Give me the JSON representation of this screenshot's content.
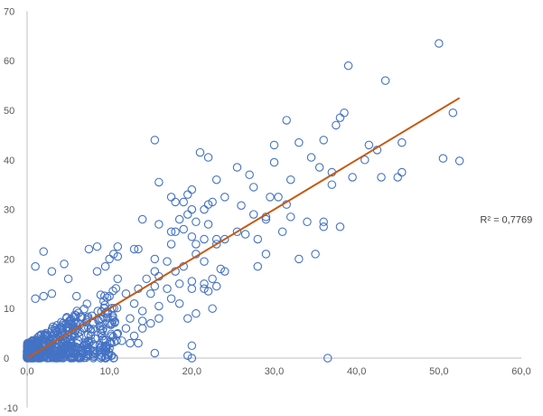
{
  "chart_data": {
    "type": "scatter",
    "title": "",
    "xlabel": "",
    "ylabel": "",
    "xlim": [
      0,
      60
    ],
    "ylim": [
      -10,
      70
    ],
    "x_ticks": [
      0,
      10,
      20,
      30,
      40,
      50,
      60
    ],
    "x_tick_labels": [
      "0,0",
      "10,0",
      "20,0",
      "30,0",
      "40,0",
      "50,0",
      "60,0"
    ],
    "y_ticks": [
      -10,
      0,
      10,
      20,
      30,
      40,
      50,
      60,
      70
    ],
    "y_tick_labels": [
      "-10",
      "0",
      "10",
      "20",
      "30",
      "40",
      "50",
      "60",
      "70"
    ],
    "grid": false,
    "legend": "none",
    "colors": {
      "marker": "#4472C4",
      "trendline": "#C55A11",
      "axis": "#BFBFBF",
      "text": "#595959"
    },
    "trendline": {
      "type": "linear",
      "x": [
        0,
        52.5
      ],
      "y": [
        0,
        52.5
      ],
      "r2_label": "R² = 0,7769",
      "r2_position": [
        55,
        28
      ]
    },
    "series": [
      {
        "points": [
          [
            50,
            63.5
          ],
          [
            39,
            59
          ],
          [
            43.5,
            56
          ],
          [
            38.5,
            49.5
          ],
          [
            38,
            48.5
          ],
          [
            31.5,
            48
          ],
          [
            37.5,
            47
          ],
          [
            51.7,
            49.5
          ],
          [
            15.5,
            44
          ],
          [
            36,
            44
          ],
          [
            41.5,
            43
          ],
          [
            45.5,
            43.5
          ],
          [
            33,
            43.5
          ],
          [
            30,
            43
          ],
          [
            42.5,
            42
          ],
          [
            21,
            41.5
          ],
          [
            22,
            40.5
          ],
          [
            50.5,
            40.3
          ],
          [
            52.5,
            39.8
          ],
          [
            30,
            39.5
          ],
          [
            34.5,
            40.5
          ],
          [
            41,
            40
          ],
          [
            35.5,
            38.5
          ],
          [
            25.5,
            38.5
          ],
          [
            45.5,
            37.5
          ],
          [
            37,
            37.5
          ],
          [
            43,
            36.5
          ],
          [
            23,
            36
          ],
          [
            39.5,
            36.5
          ],
          [
            32,
            36
          ],
          [
            27,
            37
          ],
          [
            16,
            35.5
          ],
          [
            37,
            35
          ],
          [
            45,
            36.5
          ],
          [
            27.5,
            34.5
          ],
          [
            20,
            34
          ],
          [
            29.5,
            32.5
          ],
          [
            30.5,
            32.5
          ],
          [
            24,
            32.5
          ],
          [
            17.5,
            32.5
          ],
          [
            19.5,
            33
          ],
          [
            18,
            31.5
          ],
          [
            22,
            31
          ],
          [
            19,
            31.5
          ],
          [
            22.5,
            31.5
          ],
          [
            26,
            30.8
          ],
          [
            31.5,
            31
          ],
          [
            21.5,
            30
          ],
          [
            20,
            30
          ],
          [
            27.5,
            29
          ],
          [
            19.5,
            29
          ],
          [
            29,
            28.5
          ],
          [
            29,
            28
          ],
          [
            32,
            28.5
          ],
          [
            14,
            28
          ],
          [
            18.5,
            28
          ],
          [
            20.5,
            27.5
          ],
          [
            22,
            27
          ],
          [
            34,
            27.5
          ],
          [
            36,
            27.5
          ],
          [
            38,
            26.5
          ],
          [
            16,
            27
          ],
          [
            19,
            26
          ],
          [
            25.5,
            25.5
          ],
          [
            31,
            25.5
          ],
          [
            17.5,
            25.5
          ],
          [
            18,
            25.5
          ],
          [
            36,
            26.5
          ],
          [
            26.5,
            25
          ],
          [
            20,
            24.5
          ],
          [
            21.5,
            24
          ],
          [
            23,
            24
          ],
          [
            24,
            24
          ],
          [
            28,
            24
          ],
          [
            20.5,
            23
          ],
          [
            17.5,
            23
          ],
          [
            11,
            22.5
          ],
          [
            13.5,
            22
          ],
          [
            8.5,
            22.5
          ],
          [
            7.5,
            22
          ],
          [
            23,
            23
          ],
          [
            10.5,
            21
          ],
          [
            10,
            20
          ],
          [
            13,
            22
          ],
          [
            2,
            21.5
          ],
          [
            20.5,
            21
          ],
          [
            29,
            21
          ],
          [
            33,
            20
          ],
          [
            35,
            21
          ],
          [
            15.5,
            20
          ],
          [
            11,
            20.5
          ],
          [
            17,
            19.5
          ],
          [
            21.5,
            19.5
          ],
          [
            19,
            18.5
          ],
          [
            23.5,
            18
          ],
          [
            15.5,
            17.5
          ],
          [
            14.5,
            16
          ],
          [
            16,
            16.5
          ],
          [
            18,
            17.5
          ],
          [
            22.5,
            16
          ],
          [
            28,
            18.5
          ],
          [
            24,
            17.5
          ],
          [
            9.5,
            18.5
          ],
          [
            1,
            18.5
          ],
          [
            4.5,
            19
          ],
          [
            8.5,
            17.5
          ],
          [
            3,
            17.5
          ],
          [
            5,
            16
          ],
          [
            11,
            16
          ],
          [
            20,
            15.5
          ],
          [
            18.5,
            15
          ],
          [
            21.5,
            15
          ],
          [
            15.5,
            14.5
          ],
          [
            21.5,
            14
          ],
          [
            23,
            14.5
          ],
          [
            17,
            14
          ],
          [
            20,
            14
          ],
          [
            13.5,
            14
          ],
          [
            22,
            13.5
          ],
          [
            15,
            13
          ],
          [
            12,
            13
          ],
          [
            10,
            12.5
          ],
          [
            6,
            12.5
          ],
          [
            3,
            13
          ],
          [
            1,
            12
          ],
          [
            2,
            12.5
          ],
          [
            17.5,
            12
          ],
          [
            13,
            11
          ],
          [
            18.5,
            11
          ],
          [
            16,
            10.5
          ],
          [
            22.5,
            10
          ],
          [
            14,
            9.5
          ],
          [
            20.5,
            9
          ],
          [
            19.5,
            8
          ],
          [
            16,
            8
          ],
          [
            12.5,
            8
          ],
          [
            14,
            7.5
          ],
          [
            15,
            7
          ],
          [
            10,
            7
          ],
          [
            8,
            7
          ],
          [
            12,
            6
          ],
          [
            14,
            6
          ],
          [
            11,
            5
          ],
          [
            13,
            4.5
          ],
          [
            9,
            5
          ],
          [
            11.5,
            3.5
          ],
          [
            13.5,
            3
          ],
          [
            12.5,
            3
          ],
          [
            7,
            2.5
          ],
          [
            10,
            2
          ],
          [
            8,
            1.5
          ],
          [
            15.5,
            1
          ],
          [
            19.5,
            0.5
          ],
          [
            20,
            2.5
          ],
          [
            10.5,
            0
          ],
          [
            36.5,
            0
          ],
          [
            20,
            0
          ],
          [
            9.5,
            0
          ]
        ]
      }
    ]
  }
}
